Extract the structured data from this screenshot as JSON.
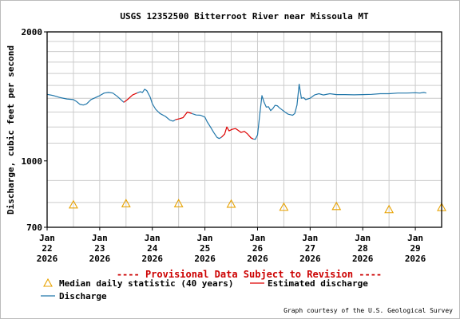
{
  "chart_data": {
    "type": "line",
    "title": "USGS 12352500 Bitterroot River near Missoula MT",
    "ylabel": "Discharge, cubic feet per second",
    "y_scale": "log",
    "ylim": [
      700,
      2000
    ],
    "y_ticks": [
      {
        "value": 700,
        "label": "700"
      },
      {
        "value": 1000,
        "label": "1000"
      },
      {
        "value": 2000,
        "label": "2000"
      }
    ],
    "y_minor_ticks": [
      800,
      900,
      1100,
      1200,
      1300,
      1400,
      1500,
      1600,
      1700,
      1800,
      1900
    ],
    "xlim": [
      "2026-01-22T00:00",
      "2026-01-29T12:00"
    ],
    "x_ticks": [
      {
        "date": "2026-01-22",
        "label": [
          "Jan",
          "22",
          "2026"
        ]
      },
      {
        "date": "2026-01-23",
        "label": [
          "Jan",
          "23",
          "2026"
        ]
      },
      {
        "date": "2026-01-24",
        "label": [
          "Jan",
          "24",
          "2026"
        ]
      },
      {
        "date": "2026-01-25",
        "label": [
          "Jan",
          "25",
          "2026"
        ]
      },
      {
        "date": "2026-01-26",
        "label": [
          "Jan",
          "26",
          "2026"
        ]
      },
      {
        "date": "2026-01-27",
        "label": [
          "Jan",
          "27",
          "2026"
        ]
      },
      {
        "date": "2026-01-28",
        "label": [
          "Jan",
          "28",
          "2026"
        ]
      },
      {
        "date": "2026-01-29",
        "label": [
          "Jan",
          "29",
          "2026"
        ]
      }
    ],
    "provisional_note": "---- Provisional Data Subject to Revision ----",
    "credit": "Graph courtesy of the U.S. Geological Survey",
    "grid": true,
    "legend_position": "bottom",
    "colors": {
      "discharge": "#2277aa",
      "estimated": "#dd0000",
      "median": "#e8a200",
      "provisional": "#cc0000",
      "grid": "#cccccc",
      "frame": "#000000"
    },
    "legend": [
      {
        "key": "median",
        "label": "Median daily statistic (40 years)"
      },
      {
        "key": "estimated",
        "label": "Estimated discharge"
      },
      {
        "key": "discharge",
        "label": "Discharge"
      }
    ],
    "series": [
      {
        "name": "Discharge",
        "key": "discharge",
        "segments": [
          [
            [
              "2026-01-22T00:00",
              1430
            ],
            [
              "2026-01-22T03:00",
              1420
            ],
            [
              "2026-01-22T06:00",
              1405
            ],
            [
              "2026-01-22T09:00",
              1395
            ],
            [
              "2026-01-22T12:00",
              1390
            ],
            [
              "2026-01-22T13:30",
              1375
            ],
            [
              "2026-01-22T15:00",
              1355
            ],
            [
              "2026-01-22T16:30",
              1350
            ],
            [
              "2026-01-22T18:00",
              1358
            ],
            [
              "2026-01-22T20:00",
              1390
            ],
            [
              "2026-01-22T22:00",
              1405
            ],
            [
              "2026-01-23T00:00",
              1420
            ],
            [
              "2026-01-23T02:00",
              1440
            ],
            [
              "2026-01-23T04:00",
              1445
            ],
            [
              "2026-01-23T06:00",
              1440
            ],
            [
              "2026-01-23T08:00",
              1415
            ],
            [
              "2026-01-23T10:00",
              1385
            ],
            [
              "2026-01-23T11:00",
              1370
            ]
          ],
          [
            [
              "2026-01-23T17:00",
              1440
            ],
            [
              "2026-01-23T18:30",
              1450
            ],
            [
              "2026-01-23T19:30",
              1445
            ],
            [
              "2026-01-23T20:30",
              1470
            ],
            [
              "2026-01-23T21:30",
              1458
            ],
            [
              "2026-01-23T23:00",
              1410
            ],
            [
              "2026-01-24T00:00",
              1360
            ],
            [
              "2026-01-24T01:30",
              1320
            ],
            [
              "2026-01-24T03:30",
              1290
            ],
            [
              "2026-01-24T06:00",
              1270
            ],
            [
              "2026-01-24T08:00",
              1245
            ],
            [
              "2026-01-24T09:30",
              1238
            ],
            [
              "2026-01-24T10:30",
              1248
            ]
          ],
          [
            [
              "2026-01-24T18:00",
              1290
            ],
            [
              "2026-01-24T20:00",
              1280
            ],
            [
              "2026-01-24T22:00",
              1278
            ],
            [
              "2026-01-25T00:00",
              1265
            ],
            [
              "2026-01-25T01:00",
              1235
            ],
            [
              "2026-01-25T02:30",
              1200
            ],
            [
              "2026-01-25T04:00",
              1165
            ],
            [
              "2026-01-25T05:30",
              1135
            ],
            [
              "2026-01-25T06:30",
              1128
            ],
            [
              "2026-01-25T07:30",
              1135
            ]
          ],
          [
            [
              "2026-01-25T22:00",
              1125
            ],
            [
              "2026-01-25T23:00",
              1123
            ],
            [
              "2026-01-26T00:00",
              1150
            ],
            [
              "2026-01-26T01:00",
              1280
            ],
            [
              "2026-01-26T02:00",
              1420
            ],
            [
              "2026-01-26T03:00",
              1370
            ],
            [
              "2026-01-26T04:00",
              1335
            ],
            [
              "2026-01-26T05:00",
              1338
            ],
            [
              "2026-01-26T06:00",
              1310
            ],
            [
              "2026-01-26T07:00",
              1325
            ],
            [
              "2026-01-26T08:00",
              1348
            ],
            [
              "2026-01-26T09:00",
              1345
            ],
            [
              "2026-01-26T10:00",
              1330
            ],
            [
              "2026-01-26T11:00",
              1318
            ],
            [
              "2026-01-26T12:30",
              1300
            ],
            [
              "2026-01-26T14:00",
              1285
            ],
            [
              "2026-01-26T15:00",
              1282
            ],
            [
              "2026-01-26T16:00",
              1278
            ],
            [
              "2026-01-26T17:00",
              1290
            ],
            [
              "2026-01-26T18:00",
              1350
            ],
            [
              "2026-01-26T19:00",
              1510
            ],
            [
              "2026-01-26T20:00",
              1400
            ],
            [
              "2026-01-26T21:00",
              1405
            ],
            [
              "2026-01-26T22:00",
              1390
            ],
            [
              "2026-01-27T00:00",
              1400
            ],
            [
              "2026-01-27T02:00",
              1425
            ],
            [
              "2026-01-27T04:00",
              1435
            ],
            [
              "2026-01-27T06:00",
              1425
            ],
            [
              "2026-01-27T09:00",
              1435
            ],
            [
              "2026-01-27T12:00",
              1428
            ],
            [
              "2026-01-27T16:00",
              1428
            ],
            [
              "2026-01-27T20:00",
              1426
            ],
            [
              "2026-01-28T00:00",
              1428
            ],
            [
              "2026-01-28T04:00",
              1430
            ],
            [
              "2026-01-28T08:00",
              1435
            ],
            [
              "2026-01-28T12:00",
              1435
            ],
            [
              "2026-01-28T16:00",
              1440
            ],
            [
              "2026-01-28T20:00",
              1440
            ],
            [
              "2026-01-29T00:00",
              1442
            ],
            [
              "2026-01-29T02:00",
              1440
            ],
            [
              "2026-01-29T04:00",
              1445
            ],
            [
              "2026-01-29T05:00",
              1440
            ]
          ]
        ]
      },
      {
        "name": "Estimated discharge",
        "key": "estimated",
        "segments": [
          [
            [
              "2026-01-23T11:00",
              1370
            ],
            [
              "2026-01-23T13:00",
              1395
            ],
            [
              "2026-01-23T15:00",
              1425
            ],
            [
              "2026-01-23T17:00",
              1440
            ]
          ],
          [
            [
              "2026-01-24T10:30",
              1248
            ],
            [
              "2026-01-24T12:30",
              1255
            ],
            [
              "2026-01-24T14:00",
              1262
            ],
            [
              "2026-01-24T16:00",
              1300
            ],
            [
              "2026-01-24T18:00",
              1290
            ]
          ],
          [
            [
              "2026-01-25T07:30",
              1135
            ],
            [
              "2026-01-25T09:00",
              1155
            ],
            [
              "2026-01-25T10:00",
              1200
            ],
            [
              "2026-01-25T11:00",
              1175
            ],
            [
              "2026-01-25T12:30",
              1185
            ],
            [
              "2026-01-25T14:00",
              1190
            ],
            [
              "2026-01-25T15:00",
              1180
            ],
            [
              "2026-01-25T16:30",
              1165
            ],
            [
              "2026-01-25T18:00",
              1172
            ],
            [
              "2026-01-25T19:30",
              1155
            ],
            [
              "2026-01-25T21:00",
              1132
            ],
            [
              "2026-01-25T22:00",
              1125
            ]
          ]
        ]
      },
      {
        "name": "Median daily statistic (40 years)",
        "key": "median",
        "points": [
          [
            "2026-01-22T12:00",
            790
          ],
          [
            "2026-01-23T12:00",
            795
          ],
          [
            "2026-01-24T12:00",
            795
          ],
          [
            "2026-01-25T12:00",
            793
          ],
          [
            "2026-01-26T12:00",
            780
          ],
          [
            "2026-01-27T12:00",
            783
          ],
          [
            "2026-01-28T12:00",
            770
          ],
          [
            "2026-01-29T12:00",
            779
          ]
        ]
      }
    ]
  }
}
